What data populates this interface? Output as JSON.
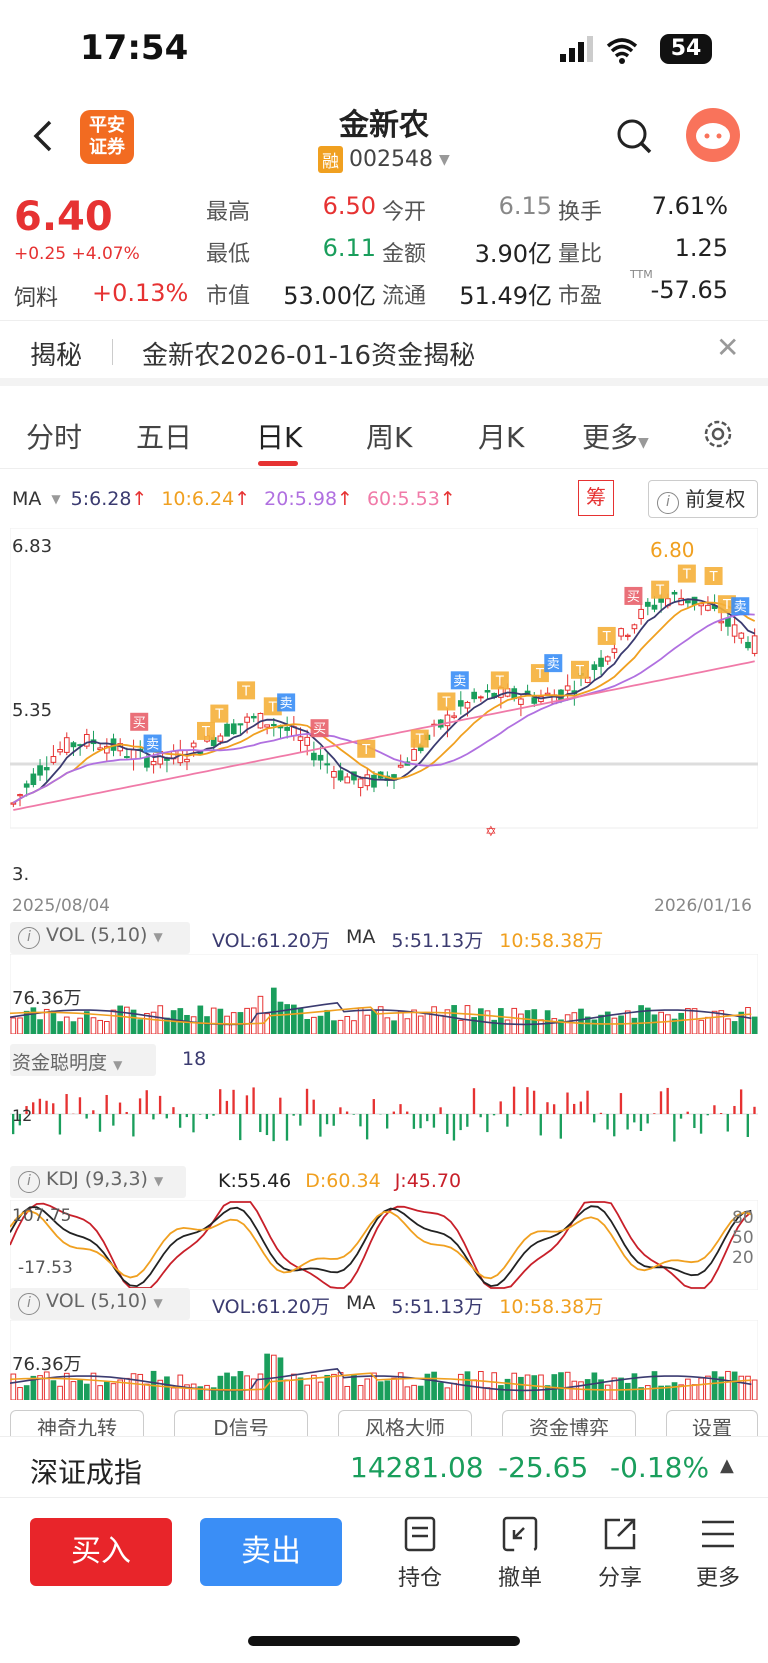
{
  "status_bar": {
    "time": "17:54",
    "battery": "54"
  },
  "header": {
    "stock_name": "金新农",
    "stock_code": "002548",
    "margin_badge": "融",
    "broker_logo_line1": "平安",
    "broker_logo_line2": "证券"
  },
  "quote": {
    "price": "6.40",
    "change": "+0.25 +4.07%",
    "sector_name": "饲料",
    "sector_change": "+0.13%",
    "fields": [
      {
        "label": "最高",
        "value": "6.50",
        "color": "#e63232"
      },
      {
        "label": "今开",
        "value": "6.15",
        "color": "#888888"
      },
      {
        "label": "换手",
        "value": "7.61%",
        "color": "#222222"
      },
      {
        "label": "最低",
        "value": "6.11",
        "color": "#1a9e5c"
      },
      {
        "label": "金额",
        "value": "3.90亿",
        "color": "#222222"
      },
      {
        "label": "量比",
        "value": "1.25",
        "color": "#222222"
      },
      {
        "label": "市值",
        "value": "53.00亿",
        "color": "#222222"
      },
      {
        "label": "流通",
        "value": "51.49亿",
        "color": "#222222"
      },
      {
        "label": "市盈",
        "value": "-57.65",
        "color": "#222222"
      }
    ],
    "pe_superscript": "TTM"
  },
  "banner": {
    "tag": "揭秘",
    "text": "金新农2026-01-16资金揭秘"
  },
  "tabs": [
    "分时",
    "五日",
    "日K",
    "周K",
    "月K",
    "更多"
  ],
  "ma_legend": {
    "label": "MA",
    "items": [
      {
        "text": "5:6.28",
        "color": "#3b3b70"
      },
      {
        "text": "10:6.24",
        "color": "#f0a020"
      },
      {
        "text": "20:5.98",
        "color": "#b070e0"
      },
      {
        "text": "60:5.53",
        "color": "#f07aa8"
      }
    ],
    "chip_button": "筹",
    "adjust_button": "前复权"
  },
  "kline": {
    "y_top": "6.83",
    "y_mid": "5.35",
    "y_low": "3.",
    "max_label": "6.80",
    "date_start": "2025/08/04",
    "date_end": "2026/01/16"
  },
  "volume_panel": {
    "title": "VOL (5,10)",
    "vol": "VOL:61.20万",
    "ma_label": "MA",
    "ma5": "5:51.13万",
    "ma10": "10:58.38万",
    "axis": "76.36万"
  },
  "capital_panel": {
    "title": "资金聪明度",
    "value": "18",
    "axis": "12"
  },
  "kdj_panel": {
    "title": "KDJ (9,3,3)",
    "k": "K:55.46",
    "d": "D:60.34",
    "j": "J:45.70",
    "y_top": "107.75",
    "y_bottom": "-17.53",
    "r80": "80",
    "r50": "50",
    "r20": "20"
  },
  "volume_panel2": {
    "title": "VOL (5,10)",
    "vol": "VOL:61.20万",
    "ma_label": "MA",
    "ma5": "5:51.13万",
    "ma10": "10:58.38万",
    "axis": "76.36万"
  },
  "tool_buttons": [
    "神奇九转",
    "D信号",
    "风格大师",
    "资金博弈",
    "设置"
  ],
  "index_bar": {
    "name": "深证成指",
    "value": "14281.08",
    "change": "-25.65",
    "pct": "-0.18%"
  },
  "bottom_bar": {
    "buy": "买入",
    "sell": "卖出",
    "items": [
      "持仓",
      "撤单",
      "分享",
      "更多"
    ]
  }
}
